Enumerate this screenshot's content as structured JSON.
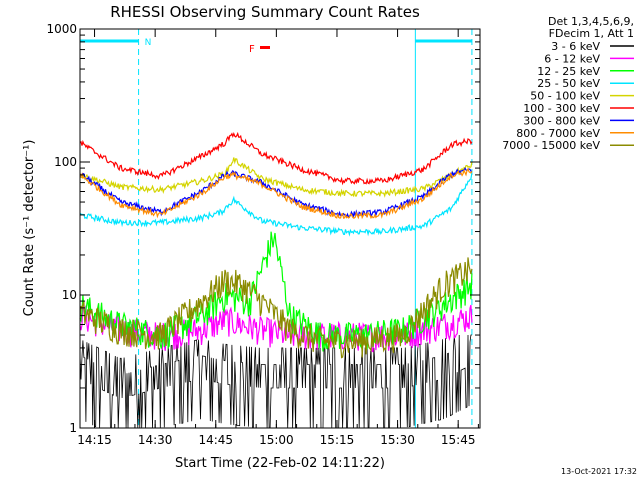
{
  "chart_data": {
    "type": "line",
    "title": "RHESSI Observing Summary Count Rates",
    "xlabel": "Start Time (22-Feb-02 14:11:22)",
    "ylabel": "Count Rate (s⁻¹ detector⁻¹)",
    "y_scale": "log",
    "ylim": [
      1,
      1000
    ],
    "xlim_minutes_from_start": [
      0,
      99
    ],
    "x_ticks": [
      {
        "label": "14:15",
        "minute": 3.6
      },
      {
        "label": "14:30",
        "minute": 18.6
      },
      {
        "label": "14:45",
        "minute": 33.6
      },
      {
        "label": "15:00",
        "minute": 48.6
      },
      {
        "label": "15:15",
        "minute": 63.6
      },
      {
        "label": "15:30",
        "minute": 78.6
      },
      {
        "label": "15:45",
        "minute": 93.6
      }
    ],
    "y_ticks": [
      {
        "label": "1",
        "value": 1
      },
      {
        "label": "10",
        "value": 10
      },
      {
        "label": "100",
        "value": 100
      },
      {
        "label": "1000",
        "value": 1000
      }
    ],
    "legend_header": [
      "Det 1,3,4,5,6,9,",
      "FDecim 1, Att 1"
    ],
    "legend_position": "outside-right",
    "footer": "13-Oct-2021 17:32",
    "annotations": {
      "night_markers": [
        {
          "label": "N",
          "minute": 14.5
        }
      ],
      "flare_marker": {
        "label": "F"
      },
      "time_boundaries_minutes": [
        0,
        14.5,
        83,
        97
      ]
    },
    "series": [
      {
        "name": "3 - 6 keV",
        "color": "#000000",
        "x": [
          0,
          10,
          20,
          30,
          36,
          45,
          52,
          60,
          70,
          80,
          90,
          97
        ],
        "values": [
          3.5,
          2.5,
          3.0,
          3.5,
          3.2,
          3.0,
          3.0,
          3.0,
          3.0,
          3.0,
          3.5,
          4.5
        ]
      },
      {
        "name": "6 - 12 keV",
        "color": "#ff00ff",
        "x": [
          0,
          10,
          20,
          30,
          36,
          45,
          52,
          60,
          70,
          80,
          90,
          97
        ],
        "values": [
          7,
          5.5,
          5,
          5.5,
          6.5,
          5.5,
          5,
          5,
          5,
          5,
          6,
          7
        ]
      },
      {
        "name": "12 - 25 keV",
        "color": "#00ff00",
        "x": [
          0,
          10,
          20,
          30,
          36,
          42,
          48,
          52,
          60,
          70,
          80,
          90,
          97
        ],
        "values": [
          8.5,
          6,
          5,
          7,
          10,
          9,
          28,
          7,
          5,
          5,
          5.5,
          8.5,
          12
        ]
      },
      {
        "name": "25 - 50 keV",
        "color": "#00e5ff",
        "x": [
          0,
          10,
          20,
          30,
          35,
          38,
          45,
          55,
          65,
          75,
          85,
          92,
          97
        ],
        "values": [
          40,
          35,
          35,
          38,
          42,
          52,
          36,
          32,
          30,
          30,
          33,
          45,
          80
        ]
      },
      {
        "name": "50 - 100 keV",
        "color": "#d4d400",
        "x": [
          0,
          10,
          20,
          30,
          36,
          38,
          45,
          55,
          65,
          75,
          85,
          92,
          97
        ],
        "values": [
          80,
          65,
          62,
          72,
          82,
          105,
          75,
          62,
          58,
          58,
          63,
          80,
          95
        ]
      },
      {
        "name": "100 - 300 keV",
        "color": "#ff0000",
        "x": [
          0,
          10,
          20,
          30,
          36,
          38,
          45,
          55,
          65,
          75,
          85,
          92,
          97
        ],
        "values": [
          140,
          90,
          78,
          110,
          140,
          165,
          115,
          88,
          72,
          72,
          88,
          135,
          145
        ]
      },
      {
        "name": "300 - 800 keV",
        "color": "#0000ff",
        "x": [
          0,
          10,
          20,
          30,
          36,
          38,
          45,
          55,
          65,
          75,
          85,
          92,
          97
        ],
        "values": [
          82,
          50,
          42,
          60,
          80,
          82,
          70,
          48,
          40,
          42,
          55,
          82,
          88
        ]
      },
      {
        "name": "800 - 7000 keV",
        "color": "#ff8c00",
        "x": [
          0,
          10,
          20,
          30,
          36,
          38,
          45,
          55,
          65,
          75,
          85,
          92,
          97
        ],
        "values": [
          80,
          48,
          40,
          58,
          78,
          80,
          68,
          46,
          39,
          40,
          53,
          80,
          86
        ]
      },
      {
        "name": "7000 - 15000 keV",
        "color": "#8b8b00",
        "x": [
          0,
          10,
          20,
          30,
          36,
          40,
          45,
          52,
          60,
          70,
          80,
          90,
          97
        ],
        "values": [
          7.5,
          5.5,
          5,
          9,
          13,
          12,
          9,
          5.5,
          4.5,
          4.5,
          5,
          12,
          16
        ]
      }
    ]
  }
}
